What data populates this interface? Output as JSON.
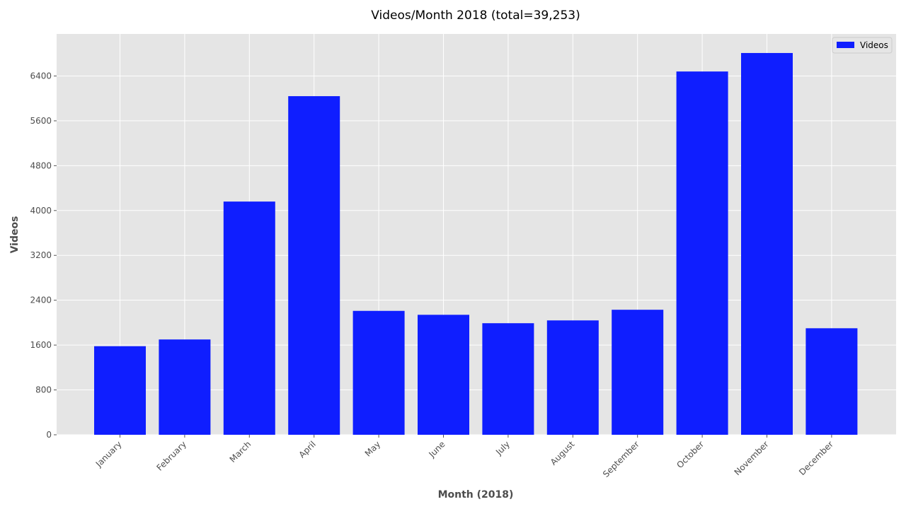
{
  "chart_data": {
    "type": "bar",
    "title": "Videos/Month 2018 (total=39,253)",
    "xlabel": "Month (2018)",
    "ylabel": "Videos",
    "categories": [
      "January",
      "February",
      "March",
      "April",
      "May",
      "June",
      "July",
      "August",
      "September",
      "October",
      "November",
      "December"
    ],
    "series": [
      {
        "name": "Videos",
        "values": [
          1580,
          1700,
          4160,
          6040,
          2210,
          2140,
          1990,
          2040,
          2230,
          6480,
          6810,
          1900
        ],
        "color": "#0f1eff"
      }
    ],
    "ylim": [
      0,
      7150
    ],
    "yticks": [
      0,
      800,
      1600,
      2400,
      3200,
      4000,
      4800,
      5600,
      6400
    ],
    "grid": true,
    "legend_position": "top-right",
    "plot_background": "#e5e5e5"
  }
}
